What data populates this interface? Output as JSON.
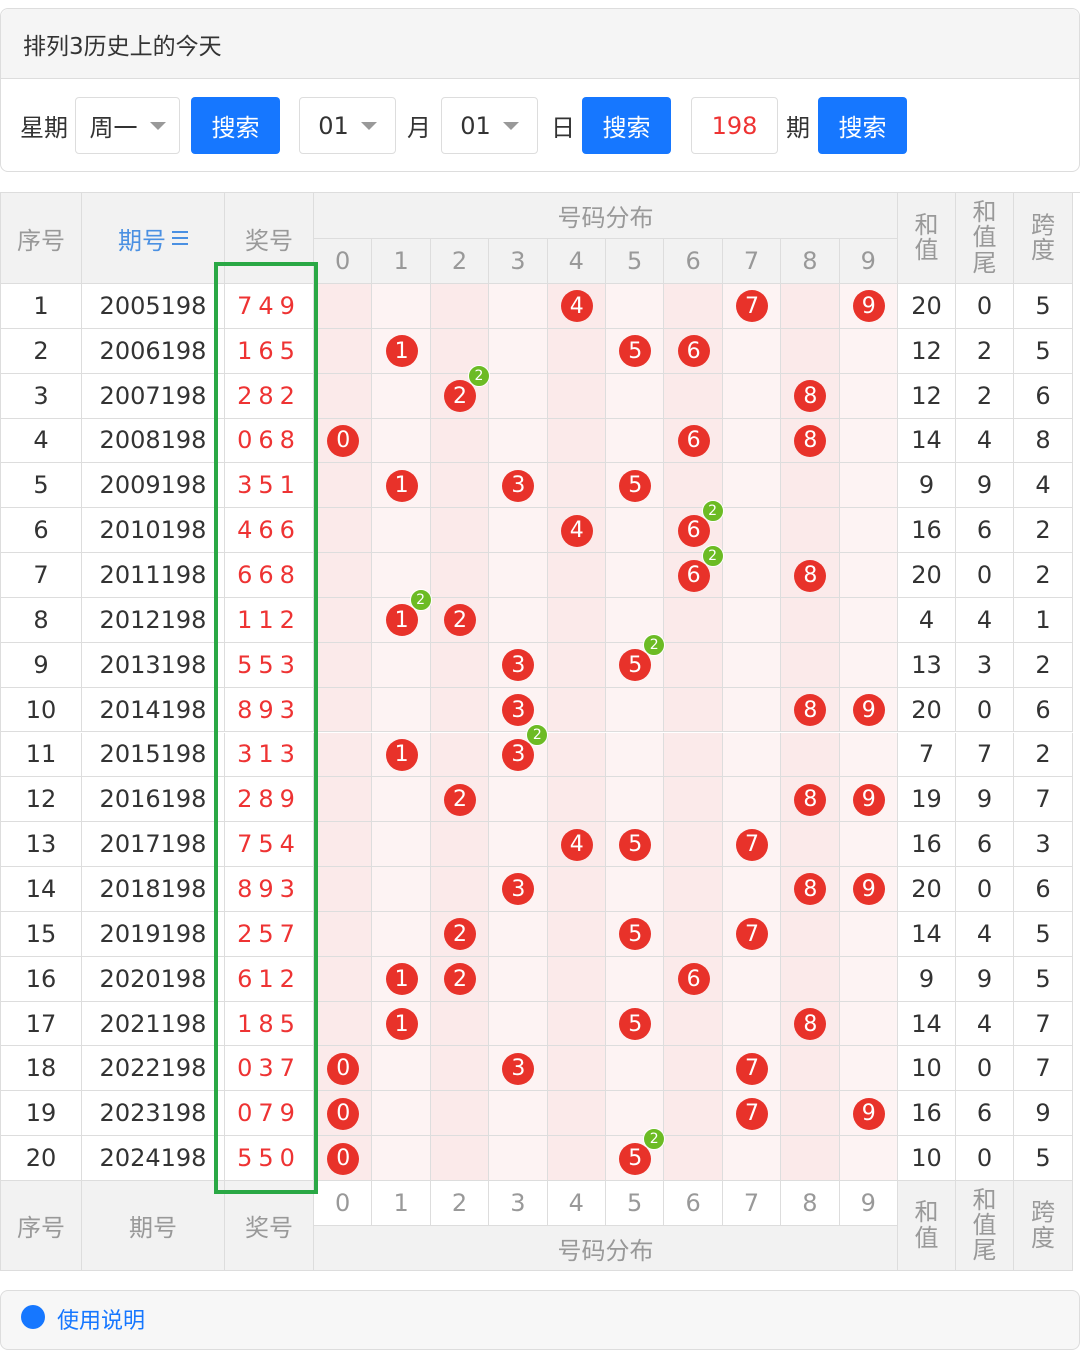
{
  "header": {
    "title": "排列3历史上的今天"
  },
  "controls": {
    "week_label": "星期",
    "week_value": "周一",
    "search_1": "搜索",
    "month_value": "01",
    "month_label": "月",
    "day_value": "01",
    "day_label": "日",
    "search_2": "搜索",
    "issue_value": "198",
    "issue_label": "期",
    "search_3": "搜索"
  },
  "table": {
    "columns": {
      "seq": "序号",
      "issue": "期号",
      "number": "奖号",
      "distribution": "号码分布",
      "sum": "和值",
      "sum_tail": "和值尾",
      "span": "跨度"
    },
    "digits": [
      "0",
      "1",
      "2",
      "3",
      "4",
      "5",
      "6",
      "7",
      "8",
      "9"
    ],
    "rows": [
      {
        "seq": 1,
        "issue": "2005198",
        "number": "749",
        "sum": 20,
        "sum_tail": 0,
        "span": 5,
        "balls": [
          {
            "n": "4"
          },
          {
            "n": "7"
          },
          {
            "n": "9"
          }
        ]
      },
      {
        "seq": 2,
        "issue": "2006198",
        "number": "165",
        "sum": 12,
        "sum_tail": 2,
        "span": 5,
        "balls": [
          {
            "n": "1"
          },
          {
            "n": "5"
          },
          {
            "n": "6"
          }
        ]
      },
      {
        "seq": 3,
        "issue": "2007198",
        "number": "282",
        "sum": 12,
        "sum_tail": 2,
        "span": 6,
        "balls": [
          {
            "n": "2",
            "count": 2
          },
          {
            "n": "8"
          }
        ]
      },
      {
        "seq": 4,
        "issue": "2008198",
        "number": "068",
        "sum": 14,
        "sum_tail": 4,
        "span": 8,
        "balls": [
          {
            "n": "0"
          },
          {
            "n": "6"
          },
          {
            "n": "8"
          }
        ]
      },
      {
        "seq": 5,
        "issue": "2009198",
        "number": "351",
        "sum": 9,
        "sum_tail": 9,
        "span": 4,
        "balls": [
          {
            "n": "1"
          },
          {
            "n": "3"
          },
          {
            "n": "5"
          }
        ]
      },
      {
        "seq": 6,
        "issue": "2010198",
        "number": "466",
        "sum": 16,
        "sum_tail": 6,
        "span": 2,
        "balls": [
          {
            "n": "4"
          },
          {
            "n": "6",
            "count": 2
          }
        ]
      },
      {
        "seq": 7,
        "issue": "2011198",
        "number": "668",
        "sum": 20,
        "sum_tail": 0,
        "span": 2,
        "balls": [
          {
            "n": "6",
            "count": 2
          },
          {
            "n": "8"
          }
        ]
      },
      {
        "seq": 8,
        "issue": "2012198",
        "number": "112",
        "sum": 4,
        "sum_tail": 4,
        "span": 1,
        "balls": [
          {
            "n": "1",
            "count": 2
          },
          {
            "n": "2"
          }
        ]
      },
      {
        "seq": 9,
        "issue": "2013198",
        "number": "553",
        "sum": 13,
        "sum_tail": 3,
        "span": 2,
        "balls": [
          {
            "n": "3"
          },
          {
            "n": "5",
            "count": 2
          }
        ]
      },
      {
        "seq": 10,
        "issue": "2014198",
        "number": "893",
        "sum": 20,
        "sum_tail": 0,
        "span": 6,
        "balls": [
          {
            "n": "3"
          },
          {
            "n": "8"
          },
          {
            "n": "9"
          }
        ]
      },
      {
        "seq": 11,
        "issue": "2015198",
        "number": "313",
        "sum": 7,
        "sum_tail": 7,
        "span": 2,
        "balls": [
          {
            "n": "1"
          },
          {
            "n": "3",
            "count": 2
          }
        ]
      },
      {
        "seq": 12,
        "issue": "2016198",
        "number": "289",
        "sum": 19,
        "sum_tail": 9,
        "span": 7,
        "balls": [
          {
            "n": "2"
          },
          {
            "n": "8"
          },
          {
            "n": "9"
          }
        ]
      },
      {
        "seq": 13,
        "issue": "2017198",
        "number": "754",
        "sum": 16,
        "sum_tail": 6,
        "span": 3,
        "balls": [
          {
            "n": "4"
          },
          {
            "n": "5"
          },
          {
            "n": "7"
          }
        ]
      },
      {
        "seq": 14,
        "issue": "2018198",
        "number": "893",
        "sum": 20,
        "sum_tail": 0,
        "span": 6,
        "balls": [
          {
            "n": "3"
          },
          {
            "n": "8"
          },
          {
            "n": "9"
          }
        ]
      },
      {
        "seq": 15,
        "issue": "2019198",
        "number": "257",
        "sum": 14,
        "sum_tail": 4,
        "span": 5,
        "balls": [
          {
            "n": "2"
          },
          {
            "n": "5"
          },
          {
            "n": "7"
          }
        ]
      },
      {
        "seq": 16,
        "issue": "2020198",
        "number": "612",
        "sum": 9,
        "sum_tail": 9,
        "span": 5,
        "balls": [
          {
            "n": "1"
          },
          {
            "n": "2"
          },
          {
            "n": "6"
          }
        ]
      },
      {
        "seq": 17,
        "issue": "2021198",
        "number": "185",
        "sum": 14,
        "sum_tail": 4,
        "span": 7,
        "balls": [
          {
            "n": "1"
          },
          {
            "n": "5"
          },
          {
            "n": "8"
          }
        ]
      },
      {
        "seq": 18,
        "issue": "2022198",
        "number": "037",
        "sum": 10,
        "sum_tail": 0,
        "span": 7,
        "balls": [
          {
            "n": "0"
          },
          {
            "n": "3"
          },
          {
            "n": "7"
          }
        ]
      },
      {
        "seq": 19,
        "issue": "2023198",
        "number": "079",
        "sum": 16,
        "sum_tail": 6,
        "span": 9,
        "balls": [
          {
            "n": "0"
          },
          {
            "n": "7"
          },
          {
            "n": "9"
          }
        ]
      },
      {
        "seq": 20,
        "issue": "2024198",
        "number": "550",
        "sum": 10,
        "sum_tail": 0,
        "span": 5,
        "balls": [
          {
            "n": "0"
          },
          {
            "n": "5",
            "count": 2
          }
        ]
      }
    ],
    "footer": {
      "seq": "序号",
      "issue": "期号",
      "number": "奖号",
      "distribution": "号码分布",
      "sum": "和值",
      "sum_tail": "和值尾",
      "span": "跨度",
      "digits": [
        "0",
        "1",
        "2",
        "3",
        "4",
        "5",
        "6",
        "7",
        "8",
        "9"
      ]
    }
  },
  "help": {
    "title": "使用说明"
  }
}
